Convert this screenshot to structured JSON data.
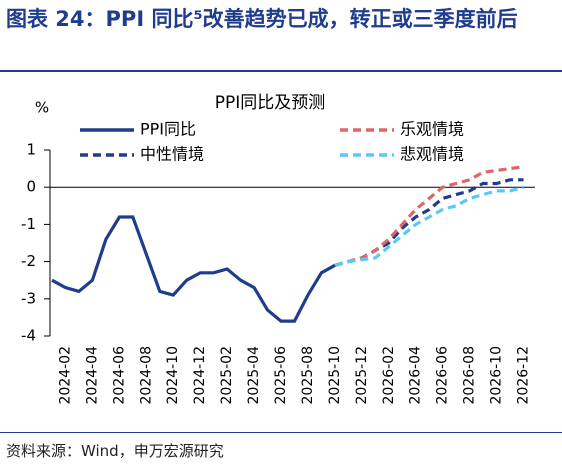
{
  "chart_data": {
    "type": "line",
    "title": "图表 24：PPI 同比⁵改善趋势已成，转正或三季度前后",
    "subtitle": "PPI同比及预测",
    "y_label": "%",
    "source": "资料来源：Wind，申万宏源研究",
    "categories": [
      null,
      "2024-02",
      null,
      "2024-04",
      null,
      "2024-06",
      null,
      "2024-08",
      null,
      "2024-10",
      null,
      "2024-12",
      null,
      "2025-02",
      null,
      "2025-04",
      null,
      "2025-06",
      null,
      "2025-08",
      null,
      "2025-10",
      null,
      "2025-12",
      null,
      "2026-02",
      null,
      "2026-04",
      null,
      "2026-06",
      null,
      "2026-08",
      null,
      "2026-10",
      null,
      "2026-12"
    ],
    "series": [
      {
        "name": "PPI同比",
        "color": "#1f3d8c",
        "dash": "solid",
        "values": [
          -2.5,
          -2.7,
          -2.8,
          -2.5,
          -1.4,
          -0.8,
          -0.8,
          -1.8,
          -2.8,
          -2.9,
          -2.5,
          -2.3,
          -2.3,
          -2.2,
          -2.5,
          -2.7,
          -3.3,
          -3.6,
          -3.6,
          -2.9,
          -2.3,
          -2.1,
          null,
          null,
          null,
          null,
          null,
          null,
          null,
          null,
          null,
          null,
          null,
          null,
          null,
          null
        ]
      },
      {
        "name": "乐观情境",
        "color": "#e06666",
        "dash": "dashed",
        "values": [
          null,
          null,
          null,
          null,
          null,
          null,
          null,
          null,
          null,
          null,
          null,
          null,
          null,
          null,
          null,
          null,
          null,
          null,
          null,
          null,
          null,
          -2.1,
          -2.0,
          -1.9,
          -1.7,
          -1.4,
          -1.0,
          -0.6,
          -0.3,
          0.0,
          0.1,
          0.2,
          0.4,
          0.45,
          0.5,
          0.55
        ]
      },
      {
        "name": "中性情境",
        "color": "#1f3d8c",
        "dash": "dashed",
        "values": [
          null,
          null,
          null,
          null,
          null,
          null,
          null,
          null,
          null,
          null,
          null,
          null,
          null,
          null,
          null,
          null,
          null,
          null,
          null,
          null,
          null,
          -2.1,
          -2.0,
          -1.9,
          -1.7,
          -1.5,
          -1.1,
          -0.8,
          -0.6,
          -0.3,
          -0.2,
          -0.1,
          0.1,
          0.1,
          0.2,
          0.2
        ]
      },
      {
        "name": "悲观情境",
        "color": "#5bc8f5",
        "dash": "dashed",
        "values": [
          null,
          null,
          null,
          null,
          null,
          null,
          null,
          null,
          null,
          null,
          null,
          null,
          null,
          null,
          null,
          null,
          null,
          null,
          null,
          null,
          null,
          -2.1,
          -2.0,
          -1.95,
          -1.9,
          -1.6,
          -1.3,
          -1.0,
          -0.8,
          -0.6,
          -0.5,
          -0.3,
          -0.2,
          -0.1,
          -0.1,
          0.0
        ]
      }
    ],
    "ylim": [
      -4,
      1
    ],
    "yticks": [
      -4,
      -3,
      -2,
      -1,
      0,
      1
    ],
    "grid": false
  }
}
